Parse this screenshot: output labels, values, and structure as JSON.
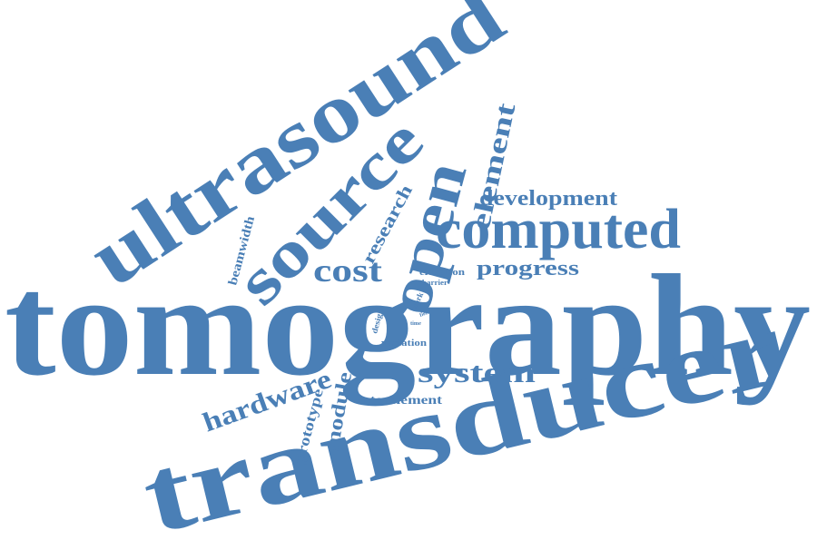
{
  "words": [
    "tomography",
    "transducer",
    "ultrasound",
    "source",
    "open",
    "element",
    "computed",
    "development",
    "cost",
    "progress",
    "research",
    "beamwidth",
    "elevation",
    "barrier",
    "work",
    "field",
    "design",
    "time",
    "variation",
    "system",
    "hardware",
    "module",
    "prototype",
    "interelement"
  ]
}
